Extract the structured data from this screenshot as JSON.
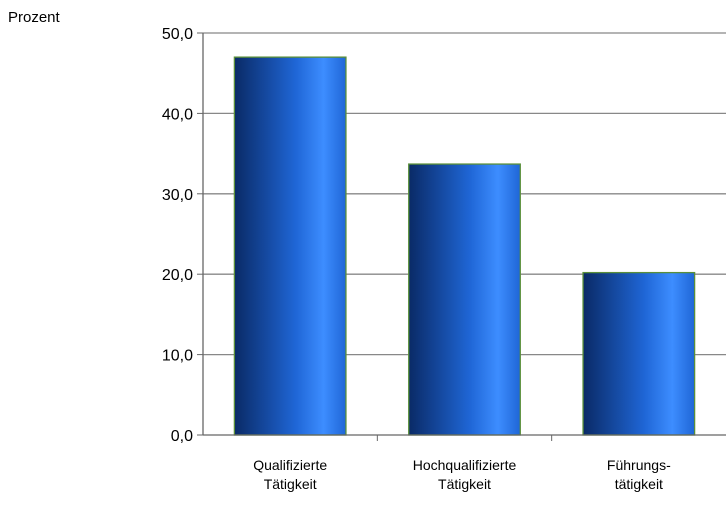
{
  "chart_data": {
    "type": "bar",
    "title": "",
    "ylabel": "Prozent",
    "xlabel": "",
    "categories": [
      [
        "Qualifizierte",
        "Tätigkeit"
      ],
      [
        "Hochqualifizierte",
        "Tätigkeit"
      ],
      [
        "Führungs-",
        "tätigkeit"
      ]
    ],
    "values": [
      47.0,
      33.7,
      20.2
    ],
    "ylim": [
      0,
      50
    ],
    "yticks": [
      "0,0",
      "10,0",
      "20,0",
      "30,0",
      "40,0",
      "50,0"
    ],
    "grid": true,
    "legend": "none",
    "colors": {
      "bar_dark": "#0a2a66",
      "bar_mid": "#1f66d6",
      "bar_light": "#3d8dff",
      "bar_edge": "#5a8f3a",
      "grid": "#888888",
      "axis": "#666666"
    }
  }
}
